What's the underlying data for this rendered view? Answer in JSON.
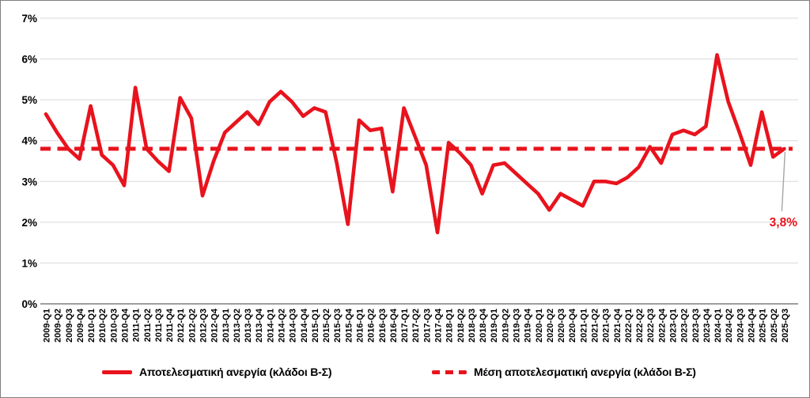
{
  "colors": {
    "series_red": "#e8131d",
    "grid_gray": "#d9d9d9",
    "axis_gray": "#7f7f7f",
    "leader_gray": "#a6a6a6",
    "text_black": "#000000"
  },
  "chart_data": {
    "type": "line",
    "title": "",
    "xlabel": "",
    "ylabel": "",
    "ylim": [
      0,
      7
    ],
    "grid": "horizontal",
    "legend_position": "bottom",
    "y_ticks": [
      "0%",
      "1%",
      "2%",
      "3%",
      "4%",
      "5%",
      "6%",
      "7%"
    ],
    "categories": [
      "2009-Q1",
      "2009-Q2",
      "2009-Q3",
      "2009-Q4",
      "2010-Q1",
      "2010-Q2",
      "2010-Q3",
      "2010-Q4",
      "2011-Q1",
      "2011-Q2",
      "2011-Q3",
      "2011-Q4",
      "2012-Q1",
      "2012-Q2",
      "2012-Q3",
      "2012-Q4",
      "2013-Q1",
      "2013-Q2",
      "2013-Q3",
      "2013-Q4",
      "2014-Q1",
      "2014-Q2",
      "2014-Q3",
      "2014-Q4",
      "2015-Q1",
      "2015-Q2",
      "2015-Q3",
      "2015-Q4",
      "2016-Q1",
      "2016-Q2",
      "2016-Q3",
      "2016-Q4",
      "2017-Q1",
      "2017-Q2",
      "2017-Q3",
      "2017-Q4",
      "2018-Q1",
      "2018-Q2",
      "2018-Q3",
      "2018-Q4",
      "2019-Q1",
      "2019-Q2",
      "2019-Q3",
      "2019-Q4",
      "2020-Q1",
      "2020-Q2",
      "2020-Q3",
      "2020-Q4",
      "2021-Q1",
      "2021-Q2",
      "2021-Q3",
      "2021-Q4",
      "2022-Q1",
      "2022-Q2",
      "2022-Q3",
      "2022-Q4",
      "2023-Q1",
      "2023-Q2",
      "2023-Q3",
      "2023-Q4",
      "2024-Q1",
      "2024-Q2",
      "2024-Q3",
      "2024-Q4",
      "2025-Q1",
      "2025-Q2",
      "2025-Q3"
    ],
    "series": [
      {
        "name": "Αποτελεσματική ανεργία (κλάδοι Β-Σ)",
        "style": "solid",
        "color": "#e8131d",
        "values": [
          4.65,
          4.2,
          3.8,
          3.55,
          4.85,
          3.65,
          3.4,
          2.9,
          5.3,
          3.8,
          3.5,
          3.25,
          5.05,
          4.55,
          2.65,
          3.5,
          4.2,
          4.45,
          4.7,
          4.4,
          4.95,
          5.2,
          4.95,
          4.6,
          4.8,
          4.7,
          3.45,
          1.95,
          4.5,
          4.25,
          4.3,
          2.75,
          4.8,
          4.1,
          3.4,
          1.75,
          3.95,
          3.7,
          3.4,
          2.7,
          3.4,
          3.45,
          3.2,
          2.95,
          2.7,
          2.3,
          2.7,
          2.55,
          2.4,
          3.0,
          3.0,
          2.95,
          3.1,
          3.35,
          3.85,
          3.45,
          4.15,
          4.25,
          4.15,
          4.35,
          6.1,
          4.95,
          4.2,
          3.4,
          4.7,
          3.6,
          3.8
        ]
      },
      {
        "name": "Μέση αποτελεσματική ανεργία (κλάδοι Β-Σ)",
        "style": "dashed",
        "color": "#e8131d",
        "constant_value": 3.8
      }
    ],
    "annotation": {
      "text": "3,8%",
      "x_category": "2025-Q3",
      "value": 3.8
    }
  },
  "legend": {
    "item1": "Αποτελεσματική ανεργία (κλάδοι Β-Σ)",
    "item2": "Μέση αποτελεσματική ανεργία (κλάδοι Β-Σ)"
  }
}
